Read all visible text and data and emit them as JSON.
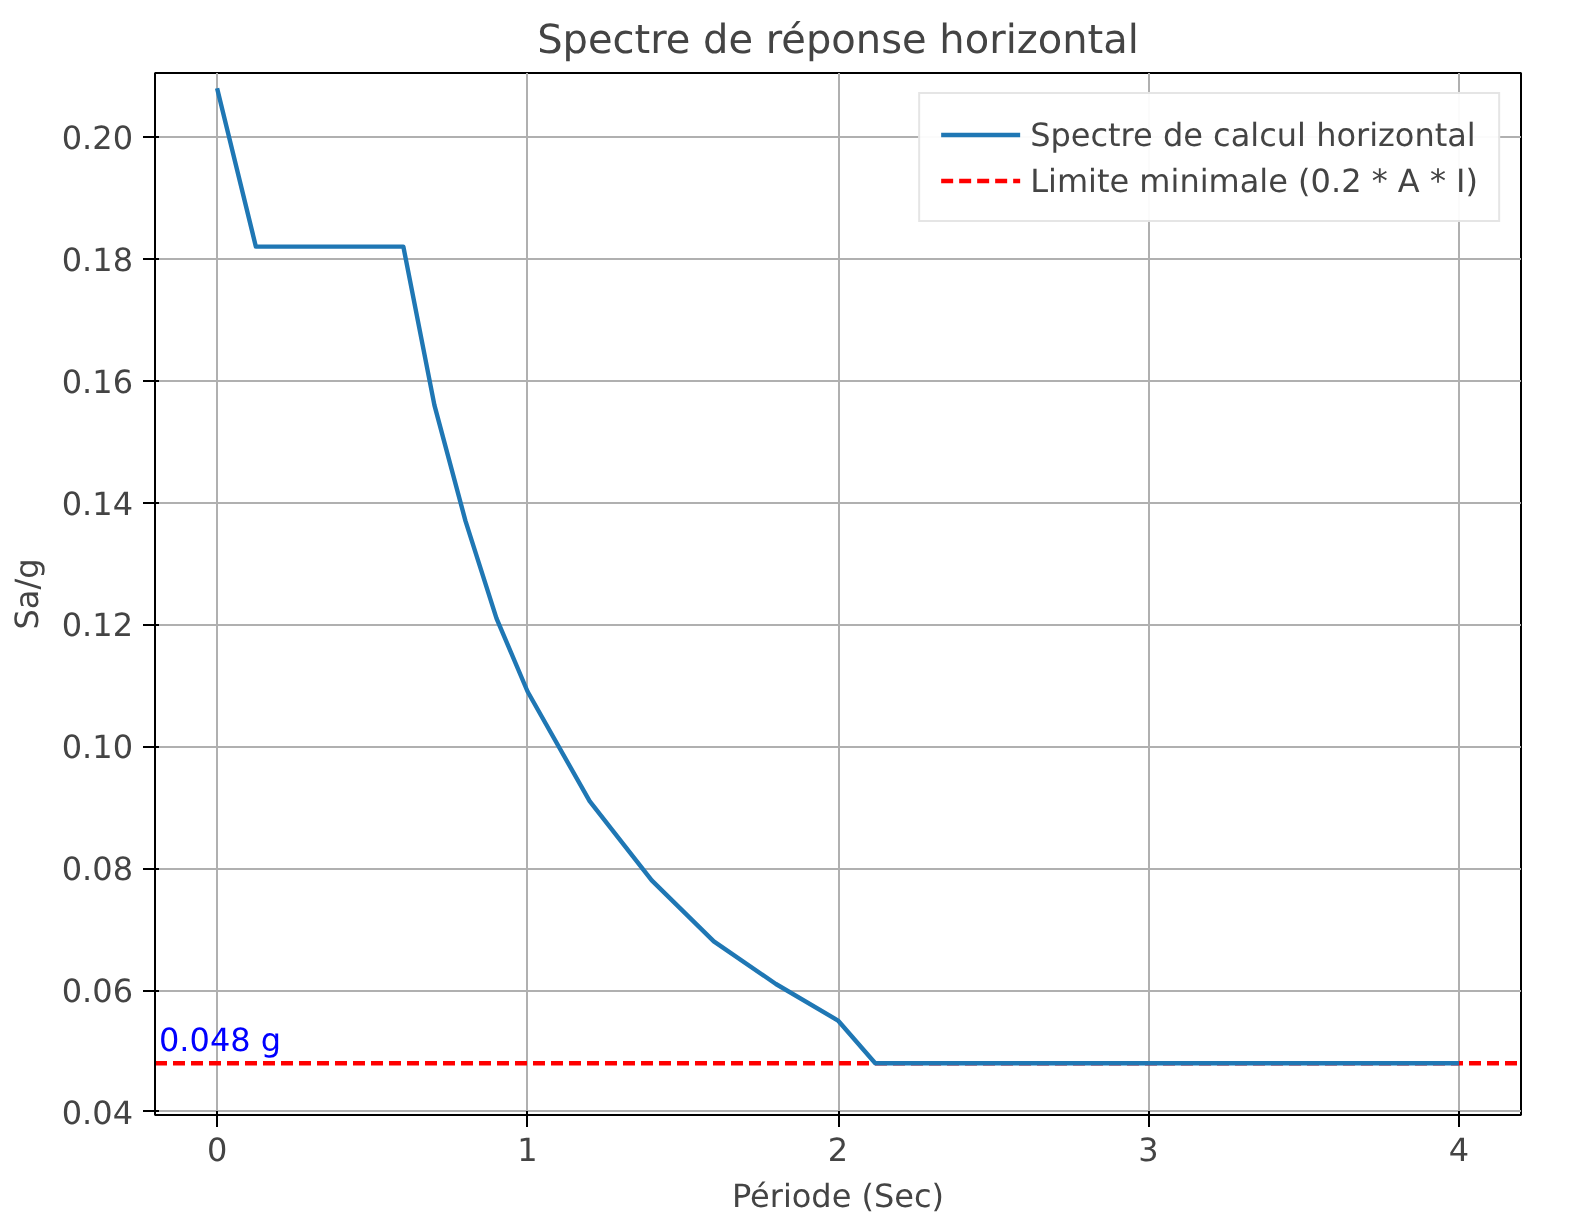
{
  "chart_data": {
    "type": "line",
    "title": "Spectre de réponse horizontal",
    "xlabel": "Période (Sec)",
    "ylabel": "Sa/g",
    "series": [
      {
        "name": "Spectre de calcul horizontal",
        "color": "#1f77b4",
        "x": [
          0,
          0.125,
          0.6,
          0.7,
          0.8,
          0.9,
          1.0,
          1.2,
          1.4,
          1.6,
          1.8,
          2.0,
          2.12,
          4.0
        ],
        "values": [
          0.208,
          0.182,
          0.182,
          0.156,
          0.137,
          0.121,
          0.109,
          0.091,
          0.078,
          0.068,
          0.061,
          0.055,
          0.048,
          0.048
        ]
      }
    ],
    "ref_lines": [
      {
        "axis": "y",
        "value": 0.048,
        "label": "Limite minimale (0.2 * A * I)",
        "color": "#ff0000",
        "line_style": "dashed"
      }
    ],
    "annotations": [
      {
        "text": "0.048 g",
        "x": -0.2,
        "y": 0.048
      }
    ],
    "xlim": [
      -0.2,
      4.2
    ],
    "ylim": [
      0.0395,
      0.2105
    ],
    "xticks": [
      0,
      1,
      2,
      3,
      4
    ],
    "yticks": [
      {
        "value": 0.04,
        "label": "0.04"
      },
      {
        "value": 0.06,
        "label": "0.06"
      },
      {
        "value": 0.08,
        "label": "0.08"
      },
      {
        "value": 0.1,
        "label": "0.10"
      },
      {
        "value": 0.12,
        "label": "0.12"
      },
      {
        "value": 0.14,
        "label": "0.14"
      },
      {
        "value": 0.16,
        "label": "0.16"
      },
      {
        "value": 0.18,
        "label": "0.18"
      },
      {
        "value": 0.2,
        "label": "0.20"
      }
    ],
    "grid": true,
    "legend": "top right",
    "line_style": "solid",
    "marker": "none"
  }
}
